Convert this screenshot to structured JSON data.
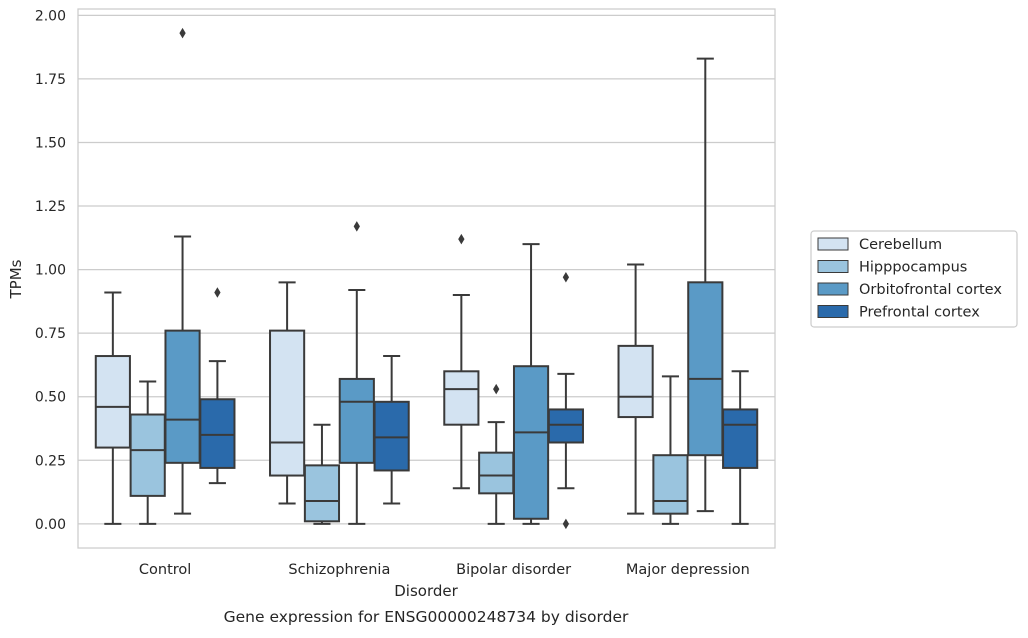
{
  "chart_data": {
    "type": "boxplot",
    "title": "Gene expression for ENSG00000248734 by disorder",
    "xlabel": "Disorder",
    "ylabel": "TPMs",
    "ylim": [
      -0.095,
      2.025
    ],
    "yticks": [
      0.0,
      0.25,
      0.5,
      0.75,
      1.0,
      1.25,
      1.5,
      1.75,
      2.0
    ],
    "ytick_labels": [
      "0.00",
      "0.25",
      "0.50",
      "0.75",
      "1.00",
      "1.25",
      "1.50",
      "1.75",
      "2.00"
    ],
    "grid": true,
    "legend_position": "right",
    "categories": [
      "Control",
      "Schizophrenia",
      "Bipolar disorder",
      "Major depression"
    ],
    "series": [
      {
        "name": "Cerebellum",
        "color": "#d3e3f2",
        "boxes": [
          {
            "whislo": 0.0,
            "q1": 0.3,
            "med": 0.46,
            "q3": 0.66,
            "whishi": 0.91,
            "fliers": []
          },
          {
            "whislo": 0.08,
            "q1": 0.19,
            "med": 0.32,
            "q3": 0.76,
            "whishi": 0.95,
            "fliers": []
          },
          {
            "whislo": 0.14,
            "q1": 0.39,
            "med": 0.53,
            "q3": 0.6,
            "whishi": 0.9,
            "fliers": [
              1.12
            ]
          },
          {
            "whislo": 0.04,
            "q1": 0.42,
            "med": 0.5,
            "q3": 0.7,
            "whishi": 1.02,
            "fliers": []
          }
        ]
      },
      {
        "name": "Hipppocampus",
        "color": "#9ac4de",
        "boxes": [
          {
            "whislo": 0.0,
            "q1": 0.11,
            "med": 0.29,
            "q3": 0.43,
            "whishi": 0.56,
            "fliers": []
          },
          {
            "whislo": 0.0,
            "q1": 0.01,
            "med": 0.09,
            "q3": 0.23,
            "whishi": 0.39,
            "fliers": []
          },
          {
            "whislo": 0.0,
            "q1": 0.12,
            "med": 0.19,
            "q3": 0.28,
            "whishi": 0.4,
            "fliers": [
              0.53
            ]
          },
          {
            "whislo": 0.0,
            "q1": 0.04,
            "med": 0.09,
            "q3": 0.27,
            "whishi": 0.58,
            "fliers": []
          }
        ]
      },
      {
        "name": "Orbitofrontal cortex",
        "color": "#5a9ac6",
        "boxes": [
          {
            "whislo": 0.04,
            "q1": 0.24,
            "med": 0.41,
            "q3": 0.76,
            "whishi": 1.13,
            "fliers": [
              1.93
            ]
          },
          {
            "whislo": 0.0,
            "q1": 0.24,
            "med": 0.48,
            "q3": 0.57,
            "whishi": 0.92,
            "fliers": [
              1.17
            ]
          },
          {
            "whislo": 0.0,
            "q1": 0.02,
            "med": 0.36,
            "q3": 0.62,
            "whishi": 1.1,
            "fliers": []
          },
          {
            "whislo": 0.05,
            "q1": 0.27,
            "med": 0.57,
            "q3": 0.95,
            "whishi": 1.83,
            "fliers": []
          }
        ]
      },
      {
        "name": "Prefrontal cortex",
        "color": "#2a6aab",
        "boxes": [
          {
            "whislo": 0.16,
            "q1": 0.22,
            "med": 0.35,
            "q3": 0.49,
            "whishi": 0.64,
            "fliers": [
              0.91
            ]
          },
          {
            "whislo": 0.08,
            "q1": 0.21,
            "med": 0.34,
            "q3": 0.48,
            "whishi": 0.66,
            "fliers": []
          },
          {
            "whislo": 0.14,
            "q1": 0.32,
            "med": 0.39,
            "q3": 0.45,
            "whishi": 0.59,
            "fliers": [
              0.97,
              0.0
            ]
          },
          {
            "whislo": 0.0,
            "q1": 0.22,
            "med": 0.39,
            "q3": 0.45,
            "whishi": 0.6,
            "fliers": []
          }
        ]
      }
    ]
  }
}
